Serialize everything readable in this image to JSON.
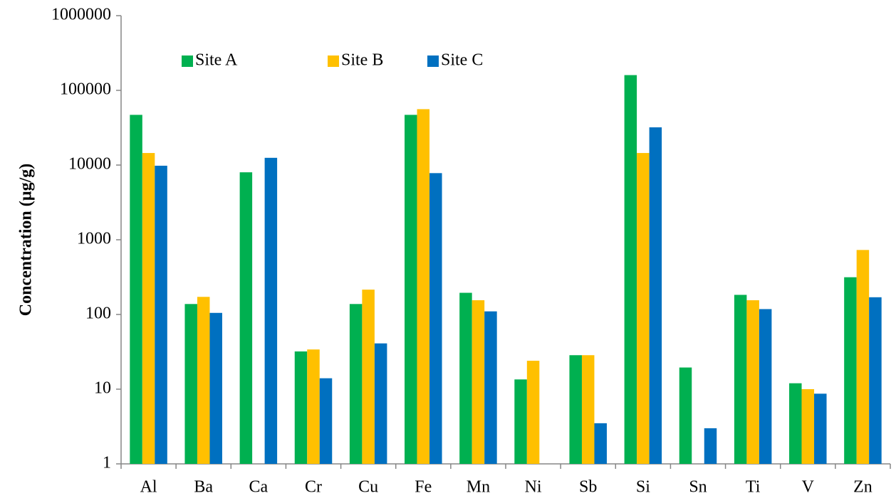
{
  "chart_data": {
    "type": "bar",
    "y_label": "Concentration (µg/g)",
    "log_scale": true,
    "grid": false,
    "legend": "top-left",
    "categories": [
      "Al",
      "Ba",
      "Ca",
      "Cr",
      "Cu",
      "Fe",
      "Mn",
      "Ni",
      "Sb",
      "Si",
      "Sn",
      "Ti",
      "V",
      "Zn"
    ],
    "series": [
      {
        "name": "Site A",
        "color": "#00b050",
        "values": [
          47000,
          138,
          8000,
          32,
          138,
          47000,
          195,
          13.5,
          28.5,
          160000,
          19.5,
          183,
          12,
          315
        ]
      },
      {
        "name": "Site B",
        "color": "#ffc000",
        "values": [
          14500,
          172,
          null,
          34,
          215,
          56000,
          155,
          24,
          28.5,
          14500,
          null,
          155,
          10,
          730
        ]
      },
      {
        "name": "Site C",
        "color": "#0070c0",
        "values": [
          9800,
          105,
          12500,
          14,
          41,
          7800,
          110,
          null,
          3.5,
          32000,
          3,
          118,
          8.7,
          170
        ]
      }
    ],
    "ylim": [
      1,
      1000000
    ],
    "yticks": [
      1,
      10,
      100,
      1000,
      10000,
      100000,
      1000000
    ]
  }
}
